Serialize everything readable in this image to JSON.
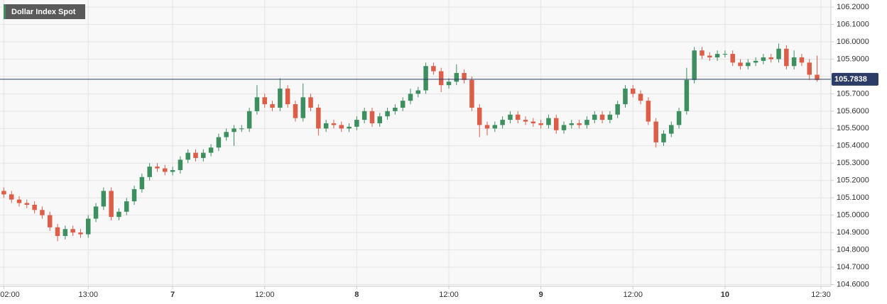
{
  "chart_data": {
    "type": "candlestick",
    "title": "Dollar Index Spot",
    "x": [
      2,
      3,
      4,
      5,
      6,
      7,
      8,
      9,
      10,
      11,
      12,
      13,
      14,
      15,
      16,
      17,
      18,
      19,
      20,
      21,
      22,
      23,
      24,
      25,
      26,
      27,
      28,
      29,
      30,
      31,
      32,
      33,
      34,
      35,
      36,
      37,
      38,
      39,
      40,
      41,
      42,
      43,
      44,
      45,
      46,
      47,
      48,
      49,
      50,
      51,
      52,
      53,
      54,
      55,
      56,
      57,
      58,
      59,
      60,
      61,
      62,
      63,
      64,
      65,
      66,
      67,
      68,
      69,
      70,
      71,
      72,
      73,
      74,
      75,
      76,
      77,
      78,
      79,
      80,
      81,
      82,
      83,
      84,
      85,
      86,
      87,
      88,
      89,
      90,
      91,
      92,
      93,
      94,
      95,
      96,
      97,
      98,
      99,
      100,
      101,
      102,
      103,
      104,
      105,
      106,
      107,
      108
    ],
    "series": [
      {
        "name": "Dollar Index Spot",
        "color_up": "#3d8f5f",
        "color_down": "#dc5d48",
        "open": [
          105.14,
          105.12,
          105.09,
          105.07,
          105.06,
          105.03,
          105.0,
          104.93,
          104.88,
          104.92,
          104.9,
          104.89,
          104.98,
          105.05,
          105.14,
          104.99,
          105.02,
          105.08,
          105.15,
          105.22,
          105.28,
          105.27,
          105.25,
          105.26,
          105.32,
          105.36,
          105.33,
          105.36,
          105.39,
          105.45,
          105.48,
          105.5,
          105.5,
          105.6,
          105.68,
          105.64,
          105.62,
          105.73,
          105.64,
          105.56,
          105.68,
          105.62,
          105.5,
          105.53,
          105.52,
          105.5,
          105.51,
          105.55,
          105.6,
          105.53,
          105.57,
          105.6,
          105.62,
          105.66,
          105.7,
          105.72,
          105.86,
          105.83,
          105.75,
          105.77,
          105.82,
          105.78,
          105.62,
          105.52,
          105.5,
          105.52,
          105.55,
          105.58,
          105.55,
          105.54,
          105.53,
          105.52,
          105.56,
          105.49,
          105.52,
          105.53,
          105.52,
          105.55,
          105.58,
          105.55,
          105.58,
          105.64,
          105.73,
          105.7,
          105.66,
          105.54,
          105.42,
          105.47,
          105.52,
          105.6,
          105.78,
          105.95,
          105.92,
          105.91,
          105.93,
          105.93,
          105.88,
          105.86,
          105.88,
          105.89,
          105.91,
          105.9,
          105.96,
          105.86,
          105.91,
          105.88,
          105.81
        ],
        "high": [
          105.16,
          105.14,
          105.11,
          105.09,
          105.08,
          105.05,
          105.02,
          104.95,
          104.94,
          104.94,
          104.92,
          105.0,
          105.07,
          105.16,
          105.16,
          105.04,
          105.1,
          105.17,
          105.24,
          105.3,
          105.3,
          105.29,
          105.28,
          105.34,
          105.38,
          105.38,
          105.38,
          105.41,
          105.47,
          105.5,
          105.52,
          105.52,
          105.62,
          105.75,
          105.7,
          105.66,
          105.79,
          105.75,
          105.66,
          105.76,
          105.7,
          105.64,
          105.55,
          105.55,
          105.54,
          105.53,
          105.57,
          105.62,
          105.62,
          105.59,
          105.62,
          105.64,
          105.68,
          105.73,
          105.74,
          105.88,
          105.88,
          105.85,
          105.79,
          105.87,
          105.84,
          105.8,
          105.64,
          105.54,
          105.54,
          105.57,
          105.6,
          105.6,
          105.57,
          105.56,
          105.55,
          105.58,
          105.58,
          105.54,
          105.55,
          105.55,
          105.57,
          105.6,
          105.6,
          105.6,
          105.66,
          105.75,
          105.75,
          105.72,
          105.68,
          105.56,
          105.49,
          105.54,
          105.62,
          105.85,
          105.97,
          105.97,
          105.94,
          105.95,
          105.95,
          105.95,
          105.9,
          105.9,
          105.91,
          105.93,
          105.93,
          105.99,
          105.98,
          105.95,
          105.93,
          105.9,
          105.92
        ],
        "low": [
          105.1,
          105.07,
          105.05,
          105.04,
          105.01,
          104.98,
          104.91,
          104.85,
          104.86,
          104.88,
          104.87,
          104.87,
          104.96,
          105.03,
          104.97,
          104.97,
          105.0,
          105.06,
          105.13,
          105.2,
          105.25,
          105.23,
          105.23,
          105.24,
          105.3,
          105.31,
          105.31,
          105.34,
          105.37,
          105.43,
          105.4,
          105.48,
          105.48,
          105.58,
          105.62,
          105.6,
          105.6,
          105.62,
          105.54,
          105.54,
          105.6,
          105.46,
          105.48,
          105.5,
          105.48,
          105.48,
          105.49,
          105.53,
          105.51,
          105.51,
          105.55,
          105.58,
          105.6,
          105.64,
          105.68,
          105.7,
          105.81,
          105.71,
          105.73,
          105.75,
          105.76,
          105.6,
          105.45,
          105.46,
          105.48,
          105.5,
          105.53,
          105.53,
          105.52,
          105.51,
          105.5,
          105.5,
          105.47,
          105.47,
          105.5,
          105.5,
          105.5,
          105.53,
          105.53,
          105.53,
          105.56,
          105.62,
          105.68,
          105.64,
          105.52,
          105.39,
          105.4,
          105.45,
          105.5,
          105.58,
          105.76,
          105.9,
          105.89,
          105.89,
          105.91,
          105.86,
          105.84,
          105.84,
          105.86,
          105.87,
          105.88,
          105.88,
          105.84,
          105.84,
          105.86,
          105.78,
          105.77
        ],
        "close": [
          105.12,
          105.09,
          105.07,
          105.06,
          105.03,
          105.0,
          104.93,
          104.88,
          104.92,
          104.9,
          104.89,
          104.98,
          105.05,
          105.14,
          104.99,
          105.02,
          105.08,
          105.15,
          105.22,
          105.28,
          105.27,
          105.25,
          105.26,
          105.32,
          105.36,
          105.33,
          105.36,
          105.39,
          105.45,
          105.48,
          105.5,
          105.5,
          105.6,
          105.68,
          105.64,
          105.62,
          105.73,
          105.64,
          105.56,
          105.68,
          105.62,
          105.5,
          105.53,
          105.52,
          105.5,
          105.51,
          105.55,
          105.6,
          105.53,
          105.57,
          105.6,
          105.62,
          105.66,
          105.7,
          105.72,
          105.86,
          105.83,
          105.75,
          105.77,
          105.82,
          105.78,
          105.62,
          105.52,
          105.5,
          105.52,
          105.55,
          105.58,
          105.55,
          105.54,
          105.53,
          105.52,
          105.56,
          105.49,
          105.52,
          105.53,
          105.52,
          105.55,
          105.58,
          105.55,
          105.58,
          105.64,
          105.73,
          105.7,
          105.66,
          105.54,
          105.42,
          105.47,
          105.52,
          105.6,
          105.78,
          105.95,
          105.92,
          105.91,
          105.93,
          105.93,
          105.88,
          105.86,
          105.88,
          105.89,
          105.91,
          105.9,
          105.96,
          105.86,
          105.91,
          105.88,
          105.81,
          105.78
        ]
      }
    ],
    "last_price": 105.7838,
    "last_price_color": "#2b3d66",
    "xlim": [
      1.5,
      109.8
    ],
    "xticks": [
      {
        "value": 2,
        "label": "02:00"
      },
      {
        "value": 13,
        "label": "13:00"
      },
      {
        "value": 24,
        "label": "7"
      },
      {
        "value": 36,
        "label": "12:00"
      },
      {
        "value": 48,
        "label": "8"
      },
      {
        "value": 60,
        "label": "12:00"
      },
      {
        "value": 72,
        "label": "9"
      },
      {
        "value": 84,
        "label": "12:00"
      },
      {
        "value": 96,
        "label": "10"
      },
      {
        "value": 108.5,
        "label": "12:30"
      }
    ],
    "ylim": [
      104.59,
      106.241
    ],
    "yticks": [
      {
        "value": 104.6,
        "label": "104.6000"
      },
      {
        "value": 104.7,
        "label": "104.7000"
      },
      {
        "value": 104.8,
        "label": "104.8000"
      },
      {
        "value": 104.9,
        "label": "104.9000"
      },
      {
        "value": 105.0,
        "label": "105.0000"
      },
      {
        "value": 105.1,
        "label": "105.1000"
      },
      {
        "value": 105.2,
        "label": "105.2000"
      },
      {
        "value": 105.3,
        "label": "105.3000"
      },
      {
        "value": 105.4,
        "label": "105.4000"
      },
      {
        "value": 105.5,
        "label": "105.5000"
      },
      {
        "value": 105.6,
        "label": "105.6000"
      },
      {
        "value": 105.7,
        "label": "105.7000"
      },
      {
        "value": 105.8,
        "label": "105.8000"
      },
      {
        "value": 105.9,
        "label": "105.9000"
      },
      {
        "value": 106.0,
        "label": "106.0000"
      },
      {
        "value": 106.1,
        "label": "106.1000"
      },
      {
        "value": 106.2,
        "label": "106.2000"
      }
    ],
    "grid": true
  }
}
